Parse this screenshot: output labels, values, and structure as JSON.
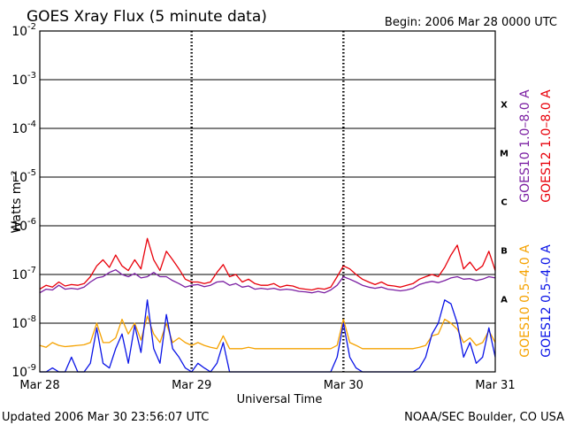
{
  "page": {
    "title": "GOES Xray Flux (5 minute data)",
    "begin_label": "Begin:  2006 Mar 28 0000 UTC",
    "footer_left": "Updated 2006 Mar 30 23:56:07 UTC",
    "footer_right": "NOAA/SEC Boulder, CO USA"
  },
  "chart_data": {
    "type": "line",
    "title": "GOES Xray Flux (5 minute data)",
    "xlabel": "Universal Time",
    "ylabel": "Watts m⁻²",
    "y_scale": "log",
    "ylim": [
      1e-09,
      0.01
    ],
    "xlim": [
      0,
      72
    ],
    "x_unit": "hours since 2006 Mar 28 0000 UTC",
    "x_ticks": [
      {
        "x": 0,
        "label": "Mar 28"
      },
      {
        "x": 24,
        "label": "Mar 29"
      },
      {
        "x": 48,
        "label": "Mar 30"
      },
      {
        "x": 72,
        "label": "Mar 31"
      }
    ],
    "y_ticks": [
      {
        "exp": -2,
        "label": "10",
        "sup": "-2"
      },
      {
        "exp": -3,
        "label": "10",
        "sup": "-3"
      },
      {
        "exp": -4,
        "label": "10",
        "sup": "-4"
      },
      {
        "exp": -5,
        "label": "10",
        "sup": "-5"
      },
      {
        "exp": -6,
        "label": "10",
        "sup": "-6"
      },
      {
        "exp": -7,
        "label": "10",
        "sup": "-7"
      },
      {
        "exp": -8,
        "label": "10",
        "sup": "-8"
      },
      {
        "exp": -9,
        "label": "10",
        "sup": "-9"
      }
    ],
    "flare_classes": [
      {
        "label": "X",
        "exp": -3.5
      },
      {
        "label": "M",
        "exp": -4.5
      },
      {
        "label": "C",
        "exp": -5.5
      },
      {
        "label": "B",
        "exp": -6.5
      },
      {
        "label": "A",
        "exp": -7.5
      }
    ],
    "grid": "horizontal lines at each decade; dotted vertical lines at day boundaries",
    "legend_placement": "right, vertical text",
    "series": [
      {
        "name": "GOES10 1.0–8.0 A",
        "color": "#7b1fa2",
        "x": [
          0,
          1,
          2,
          3,
          4,
          5,
          6,
          7,
          8,
          9,
          10,
          11,
          12,
          13,
          14,
          15,
          16,
          17,
          18,
          19,
          20,
          21,
          22,
          23,
          24,
          25,
          26,
          27,
          28,
          29,
          30,
          31,
          32,
          33,
          34,
          35,
          36,
          37,
          38,
          39,
          40,
          41,
          42,
          43,
          44,
          45,
          46,
          47,
          48,
          49,
          50,
          51,
          52,
          53,
          54,
          55,
          56,
          57,
          58,
          59,
          60,
          61,
          62,
          63,
          64,
          65,
          66,
          67,
          68,
          69,
          70,
          71,
          72
        ],
        "y": [
          4.2e-08,
          5e-08,
          4.8e-08,
          6e-08,
          5e-08,
          5.2e-08,
          5e-08,
          5.5e-08,
          7e-08,
          8.5e-08,
          9e-08,
          1.1e-07,
          1.25e-07,
          1e-07,
          9e-08,
          1.05e-07,
          8.5e-08,
          9e-08,
          1.1e-07,
          9e-08,
          9e-08,
          7.5e-08,
          6.5e-08,
          5.5e-08,
          6e-08,
          6.2e-08,
          5.6e-08,
          6e-08,
          7e-08,
          7.2e-08,
          6e-08,
          6.5e-08,
          5.5e-08,
          5.8e-08,
          5e-08,
          5.2e-08,
          5e-08,
          5.2e-08,
          4.8e-08,
          5e-08,
          4.8e-08,
          4.5e-08,
          4.4e-08,
          4.2e-08,
          4.5e-08,
          4.2e-08,
          4.8e-08,
          6e-08,
          9e-08,
          8e-08,
          7e-08,
          6e-08,
          5.5e-08,
          5.2e-08,
          5.5e-08,
          5e-08,
          4.8e-08,
          4.6e-08,
          4.8e-08,
          5.2e-08,
          6.2e-08,
          6.8e-08,
          7.2e-08,
          6.8e-08,
          7.5e-08,
          8.5e-08,
          9e-08,
          8e-08,
          8.2e-08,
          7.5e-08,
          8e-08,
          9e-08,
          8.5e-08
        ]
      },
      {
        "name": "GOES12 1.0–8.0 A",
        "color": "#e8000a",
        "x": [
          0,
          1,
          2,
          3,
          4,
          5,
          6,
          7,
          8,
          9,
          10,
          11,
          12,
          13,
          14,
          15,
          16,
          17,
          18,
          19,
          20,
          21,
          22,
          23,
          24,
          25,
          26,
          27,
          28,
          29,
          30,
          31,
          32,
          33,
          34,
          35,
          36,
          37,
          38,
          39,
          40,
          41,
          42,
          43,
          44,
          45,
          46,
          47,
          48,
          49,
          50,
          51,
          52,
          53,
          54,
          55,
          56,
          57,
          58,
          59,
          60,
          61,
          62,
          63,
          64,
          65,
          66,
          67,
          68,
          69,
          70,
          71,
          72
        ],
        "y": [
          5e-08,
          6e-08,
          5.5e-08,
          7e-08,
          5.8e-08,
          6.2e-08,
          6e-08,
          6.5e-08,
          9e-08,
          1.5e-07,
          2e-07,
          1.4e-07,
          2.5e-07,
          1.5e-07,
          1.2e-07,
          2e-07,
          1.3e-07,
          5.5e-07,
          2e-07,
          1.2e-07,
          3e-07,
          2e-07,
          1.3e-07,
          8e-08,
          7e-08,
          7e-08,
          6.5e-08,
          7e-08,
          1.1e-07,
          1.6e-07,
          9e-08,
          1e-07,
          7e-08,
          8e-08,
          6.5e-08,
          6e-08,
          6e-08,
          6.5e-08,
          5.5e-08,
          6e-08,
          5.8e-08,
          5.2e-08,
          5e-08,
          4.8e-08,
          5.2e-08,
          5e-08,
          5.5e-08,
          9e-08,
          1.5e-07,
          1.3e-07,
          1e-07,
          8e-08,
          7e-08,
          6.2e-08,
          7e-08,
          6e-08,
          5.8e-08,
          5.5e-08,
          6e-08,
          6.5e-08,
          8e-08,
          9e-08,
          1e-07,
          9e-08,
          1.4e-07,
          2.5e-07,
          4e-07,
          1.3e-07,
          1.8e-07,
          1.2e-07,
          1.5e-07,
          3e-07,
          1.2e-07
        ]
      },
      {
        "name": "GOES10 0.5–4.0 A",
        "color": "#f5a200",
        "x": [
          0,
          1,
          2,
          3,
          4,
          5,
          6,
          7,
          8,
          9,
          10,
          11,
          12,
          13,
          14,
          15,
          16,
          17,
          18,
          19,
          20,
          21,
          22,
          23,
          24,
          25,
          26,
          27,
          28,
          29,
          30,
          31,
          32,
          33,
          34,
          35,
          36,
          37,
          38,
          39,
          40,
          41,
          42,
          43,
          44,
          45,
          46,
          47,
          48,
          49,
          50,
          51,
          52,
          53,
          54,
          55,
          56,
          57,
          58,
          59,
          60,
          61,
          62,
          63,
          64,
          65,
          66,
          67,
          68,
          69,
          70,
          71,
          72
        ],
        "y": [
          3.5e-09,
          3.2e-09,
          4e-09,
          3.5e-09,
          3.3e-09,
          3.4e-09,
          3.5e-09,
          3.6e-09,
          4e-09,
          1e-08,
          4e-09,
          4e-09,
          5e-09,
          1.2e-08,
          6e-09,
          1e-08,
          4.5e-09,
          1.4e-08,
          6e-09,
          4e-09,
          1e-08,
          4e-09,
          5e-09,
          4e-09,
          3.5e-09,
          4e-09,
          3.5e-09,
          3.2e-09,
          3e-09,
          5.5e-09,
          3e-09,
          3e-09,
          3e-09,
          3.2e-09,
          3e-09,
          3e-09,
          3e-09,
          3e-09,
          3e-09,
          3e-09,
          3e-09,
          3e-09,
          3e-09,
          3e-09,
          3e-09,
          3e-09,
          3e-09,
          3.5e-09,
          1.2e-08,
          4e-09,
          3.5e-09,
          3e-09,
          3e-09,
          3e-09,
          3e-09,
          3e-09,
          3e-09,
          3e-09,
          3e-09,
          3e-09,
          3.2e-09,
          3.5e-09,
          5.5e-09,
          6e-09,
          1.2e-08,
          1e-08,
          7.5e-09,
          4e-09,
          5e-09,
          3.5e-09,
          4e-09,
          7e-09,
          4e-09
        ]
      },
      {
        "name": "GOES12 0.5–4.0 A",
        "color": "#0a14e6",
        "x": [
          0,
          1,
          2,
          3,
          4,
          5,
          6,
          7,
          8,
          9,
          10,
          11,
          12,
          13,
          14,
          15,
          16,
          17,
          18,
          19,
          20,
          21,
          22,
          23,
          24,
          25,
          26,
          27,
          28,
          29,
          30,
          31,
          32,
          33,
          34,
          35,
          36,
          37,
          38,
          39,
          40,
          41,
          42,
          43,
          44,
          45,
          46,
          47,
          48,
          49,
          50,
          51,
          52,
          53,
          54,
          55,
          56,
          57,
          58,
          59,
          60,
          61,
          62,
          63,
          64,
          65,
          66,
          67,
          68,
          69,
          70,
          71,
          72
        ],
        "y": [
          1e-09,
          1e-09,
          1.2e-09,
          1e-09,
          1e-09,
          2e-09,
          1e-09,
          1e-09,
          1.5e-09,
          8e-09,
          1.5e-09,
          1.2e-09,
          3e-09,
          6e-09,
          1.5e-09,
          9e-09,
          2.5e-09,
          3e-08,
          3e-09,
          1.5e-09,
          1.5e-08,
          3e-09,
          2e-09,
          1.2e-09,
          1e-09,
          1.5e-09,
          1.2e-09,
          1e-09,
          1.5e-09,
          4e-09,
          1e-09,
          1e-09,
          1e-09,
          1e-09,
          1e-09,
          1e-09,
          1e-09,
          1e-09,
          1e-09,
          1e-09,
          1e-09,
          1e-09,
          1e-09,
          1e-09,
          1e-09,
          1e-09,
          1e-09,
          2e-09,
          1e-08,
          2e-09,
          1.2e-09,
          1e-09,
          1e-09,
          1e-09,
          1e-09,
          1e-09,
          1e-09,
          1e-09,
          1e-09,
          1e-09,
          1.2e-09,
          2e-09,
          6e-09,
          1e-08,
          3e-08,
          2.5e-08,
          1e-08,
          2e-09,
          4e-09,
          1.5e-09,
          2e-09,
          8e-09,
          2e-09
        ]
      }
    ]
  }
}
